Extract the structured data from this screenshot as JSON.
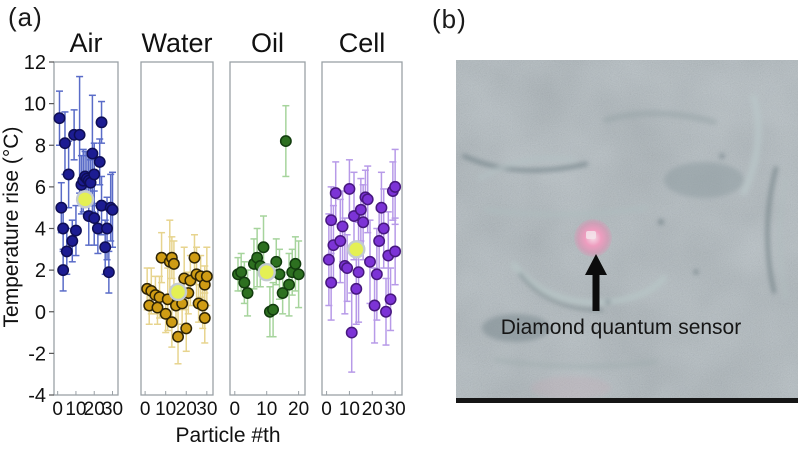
{
  "figure": {
    "panel_a_label": "(a)",
    "panel_b_label": "(b)"
  },
  "chart_axes": {
    "ylabel": "Temperature rise (°C)",
    "xlabel": "Particle #th",
    "ylim": [
      -4,
      12
    ],
    "yticks": [
      12,
      10,
      8,
      6,
      4,
      2,
      0,
      -2,
      -4
    ],
    "grid": false,
    "legend": "none"
  },
  "mean_marker": {
    "fill": "#e4f054",
    "stroke": "#c4cbd0",
    "meaning": "mean value marker"
  },
  "chart_data": [
    {
      "type": "scatter",
      "title": "Air",
      "xlim": [
        -2,
        33
      ],
      "xticks": [
        0,
        10,
        20,
        30
      ],
      "point_color": "#1c1c92",
      "point_stroke": "#0e0e55",
      "error_color": "#5a6cc8",
      "mean": {
        "x": 15,
        "y": 5.4
      },
      "points": [
        [
          1,
          9.3,
          1.3
        ],
        [
          2,
          5.0,
          1.2
        ],
        [
          3,
          4.0,
          1.1
        ],
        [
          3,
          2.0,
          1.0
        ],
        [
          4,
          8.1,
          1.5
        ],
        [
          5,
          2.9,
          1.1
        ],
        [
          6,
          6.6,
          1.6
        ],
        [
          8,
          3.4,
          1.0
        ],
        [
          9,
          8.5,
          1.2
        ],
        [
          10,
          3.9,
          1.2
        ],
        [
          12,
          8.5,
          2.8
        ],
        [
          13,
          6.1,
          1.4
        ],
        [
          14,
          6.3,
          1.5
        ],
        [
          15,
          6.5,
          1.2
        ],
        [
          16,
          6.4,
          1.3
        ],
        [
          17,
          4.6,
          1.4
        ],
        [
          17,
          6.3,
          1.2
        ],
        [
          18,
          6.2,
          1.1
        ],
        [
          19,
          7.6,
          2.8
        ],
        [
          20,
          6.6,
          1.5
        ],
        [
          20,
          4.5,
          1.3
        ],
        [
          22,
          4.0,
          1.2
        ],
        [
          23,
          7.2,
          1.1
        ],
        [
          24,
          9.1,
          1.0
        ],
        [
          24,
          5.1,
          1.4
        ],
        [
          26,
          3.1,
          1.3
        ],
        [
          27,
          4.0,
          1.5
        ],
        [
          28,
          1.9,
          1.0
        ],
        [
          29,
          5.0,
          1.6
        ],
        [
          30,
          4.9,
          1.8
        ]
      ]
    },
    {
      "type": "scatter",
      "title": "Water",
      "xlim": [
        -2,
        33
      ],
      "xticks": [
        0,
        10,
        20,
        30
      ],
      "point_color": "#cf9c14",
      "point_stroke": "#2e2405",
      "error_color": "#e7d48e",
      "mean": {
        "x": 16,
        "y": 0.95
      },
      "points": [
        [
          1,
          1.1,
          1.0
        ],
        [
          2,
          0.3,
          0.9
        ],
        [
          3,
          1.0,
          1.1
        ],
        [
          5,
          0.8,
          0.9
        ],
        [
          6,
          0.2,
          0.8
        ],
        [
          7,
          0.7,
          1.0
        ],
        [
          8,
          2.6,
          1.2
        ],
        [
          10,
          -0.1,
          0.9
        ],
        [
          11,
          0.6,
          1.5
        ],
        [
          12,
          2.4,
          2.0
        ],
        [
          13,
          2.6,
          1.0
        ],
        [
          13,
          -0.5,
          1.2
        ],
        [
          14,
          2.3,
          1.1
        ],
        [
          15,
          0.3,
          0.9
        ],
        [
          16,
          -1.2,
          1.3
        ],
        [
          18,
          0.4,
          1.0
        ],
        [
          19,
          1.6,
          1.5
        ],
        [
          20,
          -0.8,
          1.1
        ],
        [
          21,
          0.9,
          1.0
        ],
        [
          22,
          1.5,
          1.2
        ],
        [
          24,
          2.6,
          1.1
        ],
        [
          25,
          1.8,
          1.3
        ],
        [
          26,
          0.4,
          0.9
        ],
        [
          27,
          1.7,
          1.0
        ],
        [
          28,
          0.3,
          1.1
        ],
        [
          29,
          -0.3,
          1.2
        ],
        [
          29,
          1.3,
          0.9
        ],
        [
          30,
          1.7,
          1.4
        ]
      ]
    },
    {
      "type": "scatter",
      "title": "Oil",
      "xlim": [
        -1.5,
        22
      ],
      "xticks": [
        0,
        10,
        20
      ],
      "point_color": "#2d7020",
      "point_stroke": "#123c0e",
      "error_color": "#a6d49c",
      "mean": {
        "x": 10,
        "y": 1.9
      },
      "points": [
        [
          1,
          1.8,
          0.8
        ],
        [
          2,
          1.9,
          0.9
        ],
        [
          3,
          1.4,
          1.0
        ],
        [
          4,
          0.9,
          1.1
        ],
        [
          6,
          2.3,
          1.2
        ],
        [
          7,
          2.6,
          1.4
        ],
        [
          8,
          2.2,
          1.0
        ],
        [
          9,
          3.1,
          1.5
        ],
        [
          11,
          0.0,
          1.2
        ],
        [
          12,
          0.1,
          1.3
        ],
        [
          13,
          2.4,
          1.1
        ],
        [
          14,
          1.8,
          1.2
        ],
        [
          15,
          0.9,
          1.0
        ],
        [
          16,
          8.2,
          1.7
        ],
        [
          17,
          1.3,
          1.5
        ],
        [
          18,
          1.9,
          1.1
        ],
        [
          19,
          2.3,
          1.3
        ],
        [
          20,
          1.8,
          1.6
        ]
      ]
    },
    {
      "type": "scatter",
      "title": "Cell",
      "xlim": [
        -2,
        33
      ],
      "xticks": [
        0,
        10,
        20,
        30
      ],
      "point_color": "#7c33d6",
      "point_stroke": "#47187f",
      "error_color": "#b79ae8",
      "mean": {
        "x": 13,
        "y": 3.0
      },
      "points": [
        [
          1,
          2.5,
          2.2
        ],
        [
          2,
          4.4,
          1.6
        ],
        [
          2,
          1.4,
          1.8
        ],
        [
          3,
          3.2,
          1.9
        ],
        [
          4,
          5.7,
          1.5
        ],
        [
          6,
          3.4,
          2.0
        ],
        [
          7,
          4.1,
          1.7
        ],
        [
          8,
          2.2,
          2.3
        ],
        [
          9,
          2.1,
          1.6
        ],
        [
          10,
          5.9,
          1.4
        ],
        [
          11,
          -1.0,
          1.9
        ],
        [
          12,
          4.6,
          2.1
        ],
        [
          13,
          1.1,
          1.7
        ],
        [
          14,
          1.9,
          2.4
        ],
        [
          15,
          4.9,
          1.5
        ],
        [
          16,
          4.3,
          1.8
        ],
        [
          17,
          5.5,
          1.3
        ],
        [
          18,
          5.4,
          1.6
        ],
        [
          19,
          2.4,
          2.0
        ],
        [
          21,
          0.3,
          1.8
        ],
        [
          22,
          1.8,
          2.2
        ],
        [
          23,
          3.4,
          1.5
        ],
        [
          24,
          5.0,
          1.7
        ],
        [
          25,
          4.0,
          1.9
        ],
        [
          26,
          0.0,
          1.6
        ],
        [
          27,
          2.7,
          2.1
        ],
        [
          28,
          0.6,
          1.5
        ],
        [
          29,
          5.8,
          1.4
        ],
        [
          30,
          6.0,
          1.8
        ],
        [
          30,
          2.9,
          1.6
        ]
      ]
    }
  ],
  "panel_b": {
    "caption": "Diamond quantum sensor",
    "arrow_icon": "up-arrow",
    "sensor_color": "#ee9dbf",
    "background_color": "#87959b"
  }
}
